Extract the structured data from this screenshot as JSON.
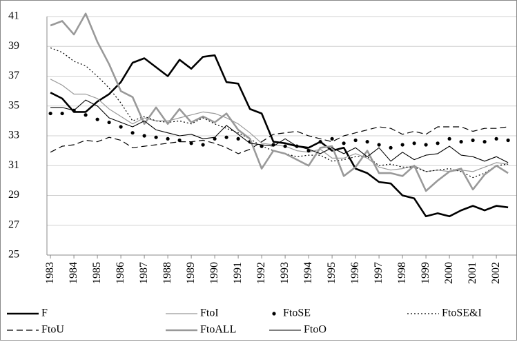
{
  "chart_data": {
    "type": "line",
    "x": [
      1983,
      1983.5,
      1984,
      1984.5,
      1985,
      1985.5,
      1986,
      1986.5,
      1987,
      1987.5,
      1988,
      1988.5,
      1989,
      1989.5,
      1990,
      1990.5,
      1991,
      1991.5,
      1992,
      1992.5,
      1993,
      1993.5,
      1994,
      1994.5,
      1995,
      1995.5,
      1996,
      1996.5,
      1997,
      1997.5,
      1998,
      1998.5,
      1999,
      1999.5,
      2000,
      2000.5,
      2001,
      2001.5,
      2002,
      2002.5
    ],
    "xlim": [
      1982.85,
      2002.85
    ],
    "xticks": [
      1983,
      1984,
      1985,
      1986,
      1987,
      1988,
      1989,
      1990,
      1991,
      1992,
      1993,
      1994,
      1995,
      1996,
      1997,
      1998,
      1999,
      2000,
      2001,
      2002
    ],
    "ylim": [
      25,
      41
    ],
    "yticks": [
      25,
      27,
      29,
      31,
      33,
      35,
      37,
      39,
      41
    ],
    "grid": true,
    "legend": "bottom",
    "series": [
      {
        "name": "F",
        "color": "#000000",
        "line_width": 2.6,
        "dash": "solid",
        "values": [
          35.9,
          35.5,
          34.6,
          34.6,
          35.3,
          35.8,
          36.6,
          37.9,
          38.2,
          37.6,
          37.0,
          38.1,
          37.5,
          38.3,
          38.4,
          36.6,
          36.5,
          34.8,
          34.5,
          32.6,
          32.5,
          32.3,
          32.2,
          32.6,
          32.0,
          32.2,
          30.8,
          30.5,
          29.9,
          29.8,
          29.0,
          28.8,
          27.6,
          27.8,
          27.6,
          28.0,
          28.3,
          28.0,
          28.3,
          28.2
        ]
      },
      {
        "name": "FtoI",
        "color": "#999999",
        "line_width": 1.2,
        "dash": "solid",
        "values": [
          36.8,
          36.4,
          35.8,
          35.8,
          35.5,
          34.8,
          34.3,
          33.8,
          34.2,
          34.0,
          34.0,
          34.2,
          34.4,
          34.6,
          34.5,
          34.2,
          33.8,
          33.2,
          32.5,
          32.4,
          32.3,
          32.0,
          31.9,
          32.1,
          31.5,
          31.5,
          31.8,
          31.5,
          30.9,
          30.7,
          30.8,
          31.0,
          30.6,
          30.7,
          30.6,
          30.7,
          30.6,
          30.9,
          31.2,
          31.1
        ]
      },
      {
        "name": "FtoSE",
        "color": "#000000",
        "line_width": 0,
        "dash": "dots",
        "values": [
          34.5,
          34.5,
          34.7,
          34.4,
          34.1,
          33.9,
          33.6,
          33.2,
          33.0,
          32.9,
          32.8,
          32.7,
          32.5,
          32.4,
          32.8,
          32.9,
          32.8,
          32.6,
          32.3,
          32.4,
          32.3,
          32.3,
          32.0,
          32.6,
          32.8,
          32.5,
          32.7,
          32.6,
          32.4,
          32.2,
          32.4,
          32.5,
          32.4,
          32.5,
          32.8,
          32.6,
          32.7,
          32.6,
          32.8,
          32.7
        ]
      },
      {
        "name": "FtoSE&I",
        "color": "#000000",
        "line_width": 1.2,
        "dash": "dotted",
        "values": [
          38.9,
          38.6,
          38.0,
          37.7,
          37.0,
          36.2,
          35.2,
          34.0,
          34.3,
          34.0,
          33.9,
          34.0,
          33.8,
          34.2,
          33.8,
          33.5,
          33.2,
          32.8,
          32.3,
          32.0,
          31.8,
          31.6,
          31.7,
          31.7,
          31.3,
          31.4,
          31.6,
          31.6,
          31.0,
          31.1,
          30.9,
          30.9,
          30.6,
          30.7,
          30.8,
          30.6,
          30.2,
          30.5,
          31.0,
          31.1
        ]
      },
      {
        "name": "FtoU",
        "color": "#000000",
        "line_width": 1.2,
        "dash": "dashed",
        "values": [
          31.9,
          32.3,
          32.4,
          32.7,
          32.6,
          32.9,
          32.7,
          32.2,
          32.3,
          32.4,
          32.5,
          32.6,
          32.6,
          32.7,
          32.5,
          32.2,
          31.8,
          32.1,
          32.6,
          33.1,
          33.2,
          33.3,
          33.0,
          32.8,
          32.6,
          33.0,
          33.2,
          33.4,
          33.6,
          33.5,
          33.1,
          33.3,
          33.1,
          33.6,
          33.6,
          33.6,
          33.3,
          33.5,
          33.5,
          33.6
        ]
      },
      {
        "name": "FtoALL",
        "color": "#999999",
        "line_width": 2.6,
        "dash": "solid",
        "values": [
          40.4,
          40.7,
          39.8,
          41.2,
          39.3,
          37.8,
          36.0,
          35.6,
          33.8,
          34.9,
          33.8,
          34.8,
          33.9,
          34.3,
          33.9,
          34.5,
          33.4,
          32.8,
          30.8,
          32.0,
          31.8,
          31.4,
          31.0,
          32.2,
          32.3,
          30.3,
          30.9,
          32.0,
          30.5,
          30.5,
          30.3,
          31.0,
          29.3,
          30.0,
          30.6,
          30.8,
          29.4,
          30.4,
          31.0,
          30.5
        ]
      },
      {
        "name": "FtoO",
        "color": "#000000",
        "line_width": 1.1,
        "dash": "solid",
        "values": [
          34.9,
          34.9,
          34.7,
          35.4,
          35.0,
          34.2,
          33.9,
          33.6,
          34.0,
          33.4,
          33.2,
          33.0,
          33.1,
          32.8,
          32.9,
          33.7,
          33.1,
          32.5,
          32.4,
          32.3,
          32.8,
          32.3,
          32.1,
          31.8,
          32.2,
          31.8,
          32.2,
          31.6,
          32.2,
          31.3,
          31.9,
          31.4,
          31.7,
          31.8,
          32.3,
          31.7,
          31.6,
          31.3,
          31.6,
          31.2
        ]
      }
    ]
  }
}
